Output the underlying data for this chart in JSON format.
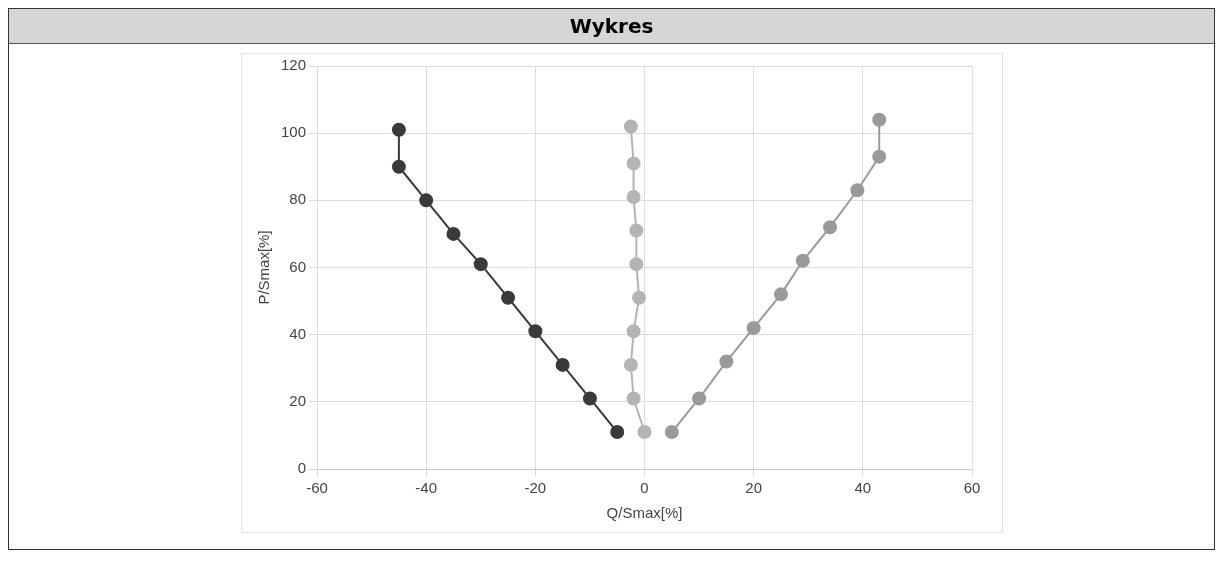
{
  "chart_data": {
    "type": "line",
    "title": "Wykres",
    "xlabel": "Q/Smax[%]",
    "ylabel": "P/Smax[%]",
    "xlim": [
      -60,
      60
    ],
    "xticks": [
      -60,
      -40,
      -20,
      0,
      20,
      40,
      60
    ],
    "ylim": [
      0,
      120
    ],
    "yticks": [
      0,
      20,
      40,
      60,
      80,
      100,
      120
    ],
    "grid": true,
    "legend": false,
    "marker": "circle",
    "line_style": "solid",
    "series": [
      {
        "color": "#3a3a3a",
        "x": [
          -5,
          -10,
          -15,
          -20,
          -25,
          -30,
          -35,
          -40,
          -45,
          -45
        ],
        "values": [
          11,
          21,
          31,
          41,
          51,
          61,
          70,
          80,
          90,
          101
        ]
      },
      {
        "color": "#b4b4b4",
        "x": [
          0,
          -2,
          -2.5,
          -2,
          -1,
          -1.5,
          -1.5,
          -2,
          -2,
          -2.5
        ],
        "values": [
          11,
          21,
          31,
          41,
          51,
          61,
          71,
          81,
          91,
          102
        ]
      },
      {
        "color": "#9a9a9a",
        "x": [
          5,
          10,
          15,
          20,
          25,
          29,
          34,
          39,
          43,
          43
        ],
        "values": [
          11,
          21,
          32,
          42,
          52,
          62,
          72,
          83,
          93,
          104
        ]
      }
    ]
  }
}
